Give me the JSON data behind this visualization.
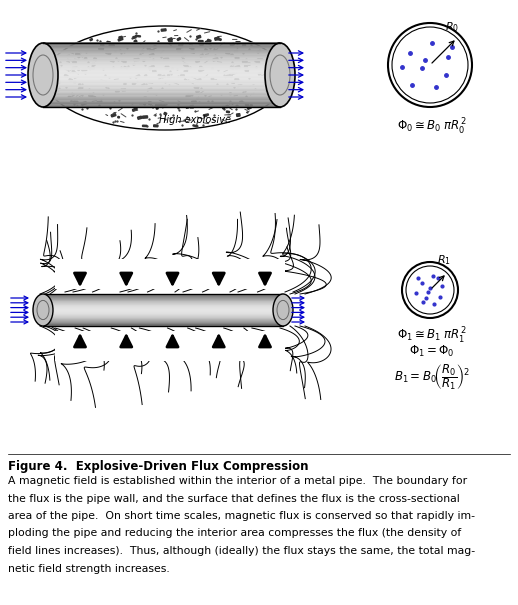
{
  "bg_color": "#ffffff",
  "arrow_color": "#0000cc",
  "pipe_gray_light": "#d8d8d8",
  "circle_dot_color": "#3333cc",
  "title": "Figure 4.  Explosive-Driven Flux Compression",
  "caption_lines": [
    "A magnetic field is established within the interior of a metal pipe.  The boundary for",
    "the flux is the pipe wall, and the surface that defines the flux is the cross-sectional",
    "area of the pipe.  On short time scales, magnetic flux is conserved so that rapidly im-",
    "ploding the pipe and reducing the interior area compresses the flux (the density of",
    "field lines increases).  Thus, although (ideally) the flux stays the same, the total mag-",
    "netic field strength increases."
  ]
}
